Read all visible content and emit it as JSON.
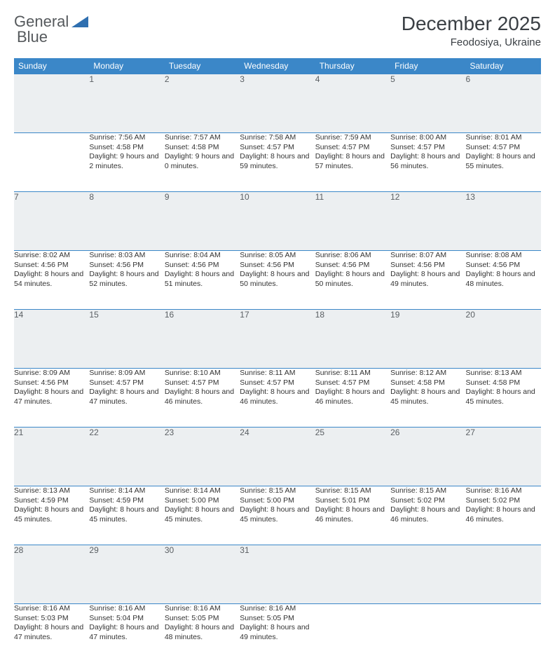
{
  "logo": {
    "text1": "General",
    "text2": "Blue"
  },
  "title": {
    "month": "December 2025",
    "location": "Feodosiya, Ukraine"
  },
  "colors": {
    "header_bg": "#3b87c8",
    "header_text": "#ffffff",
    "daynum_bg": "#eceff1",
    "daynum_text": "#5a5f63",
    "border": "#3b87c8",
    "body_text": "#333333",
    "title_text": "#3a3f44",
    "logo_text": "#55595c",
    "logo_triangle": "#2f6fb0"
  },
  "weekdays": [
    "Sunday",
    "Monday",
    "Tuesday",
    "Wednesday",
    "Thursday",
    "Friday",
    "Saturday"
  ],
  "weeks": [
    [
      null,
      {
        "d": "1",
        "sr": "7:56 AM",
        "ss": "4:58 PM",
        "dl": "9 hours and 2 minutes."
      },
      {
        "d": "2",
        "sr": "7:57 AM",
        "ss": "4:58 PM",
        "dl": "9 hours and 0 minutes."
      },
      {
        "d": "3",
        "sr": "7:58 AM",
        "ss": "4:57 PM",
        "dl": "8 hours and 59 minutes."
      },
      {
        "d": "4",
        "sr": "7:59 AM",
        "ss": "4:57 PM",
        "dl": "8 hours and 57 minutes."
      },
      {
        "d": "5",
        "sr": "8:00 AM",
        "ss": "4:57 PM",
        "dl": "8 hours and 56 minutes."
      },
      {
        "d": "6",
        "sr": "8:01 AM",
        "ss": "4:57 PM",
        "dl": "8 hours and 55 minutes."
      }
    ],
    [
      {
        "d": "7",
        "sr": "8:02 AM",
        "ss": "4:56 PM",
        "dl": "8 hours and 54 minutes."
      },
      {
        "d": "8",
        "sr": "8:03 AM",
        "ss": "4:56 PM",
        "dl": "8 hours and 52 minutes."
      },
      {
        "d": "9",
        "sr": "8:04 AM",
        "ss": "4:56 PM",
        "dl": "8 hours and 51 minutes."
      },
      {
        "d": "10",
        "sr": "8:05 AM",
        "ss": "4:56 PM",
        "dl": "8 hours and 50 minutes."
      },
      {
        "d": "11",
        "sr": "8:06 AM",
        "ss": "4:56 PM",
        "dl": "8 hours and 50 minutes."
      },
      {
        "d": "12",
        "sr": "8:07 AM",
        "ss": "4:56 PM",
        "dl": "8 hours and 49 minutes."
      },
      {
        "d": "13",
        "sr": "8:08 AM",
        "ss": "4:56 PM",
        "dl": "8 hours and 48 minutes."
      }
    ],
    [
      {
        "d": "14",
        "sr": "8:09 AM",
        "ss": "4:56 PM",
        "dl": "8 hours and 47 minutes."
      },
      {
        "d": "15",
        "sr": "8:09 AM",
        "ss": "4:57 PM",
        "dl": "8 hours and 47 minutes."
      },
      {
        "d": "16",
        "sr": "8:10 AM",
        "ss": "4:57 PM",
        "dl": "8 hours and 46 minutes."
      },
      {
        "d": "17",
        "sr": "8:11 AM",
        "ss": "4:57 PM",
        "dl": "8 hours and 46 minutes."
      },
      {
        "d": "18",
        "sr": "8:11 AM",
        "ss": "4:57 PM",
        "dl": "8 hours and 46 minutes."
      },
      {
        "d": "19",
        "sr": "8:12 AM",
        "ss": "4:58 PM",
        "dl": "8 hours and 45 minutes."
      },
      {
        "d": "20",
        "sr": "8:13 AM",
        "ss": "4:58 PM",
        "dl": "8 hours and 45 minutes."
      }
    ],
    [
      {
        "d": "21",
        "sr": "8:13 AM",
        "ss": "4:59 PM",
        "dl": "8 hours and 45 minutes."
      },
      {
        "d": "22",
        "sr": "8:14 AM",
        "ss": "4:59 PM",
        "dl": "8 hours and 45 minutes."
      },
      {
        "d": "23",
        "sr": "8:14 AM",
        "ss": "5:00 PM",
        "dl": "8 hours and 45 minutes."
      },
      {
        "d": "24",
        "sr": "8:15 AM",
        "ss": "5:00 PM",
        "dl": "8 hours and 45 minutes."
      },
      {
        "d": "25",
        "sr": "8:15 AM",
        "ss": "5:01 PM",
        "dl": "8 hours and 46 minutes."
      },
      {
        "d": "26",
        "sr": "8:15 AM",
        "ss": "5:02 PM",
        "dl": "8 hours and 46 minutes."
      },
      {
        "d": "27",
        "sr": "8:16 AM",
        "ss": "5:02 PM",
        "dl": "8 hours and 46 minutes."
      }
    ],
    [
      {
        "d": "28",
        "sr": "8:16 AM",
        "ss": "5:03 PM",
        "dl": "8 hours and 47 minutes."
      },
      {
        "d": "29",
        "sr": "8:16 AM",
        "ss": "5:04 PM",
        "dl": "8 hours and 47 minutes."
      },
      {
        "d": "30",
        "sr": "8:16 AM",
        "ss": "5:05 PM",
        "dl": "8 hours and 48 minutes."
      },
      {
        "d": "31",
        "sr": "8:16 AM",
        "ss": "5:05 PM",
        "dl": "8 hours and 49 minutes."
      },
      null,
      null,
      null
    ]
  ],
  "labels": {
    "sunrise": "Sunrise:",
    "sunset": "Sunset:",
    "daylight": "Daylight:"
  }
}
